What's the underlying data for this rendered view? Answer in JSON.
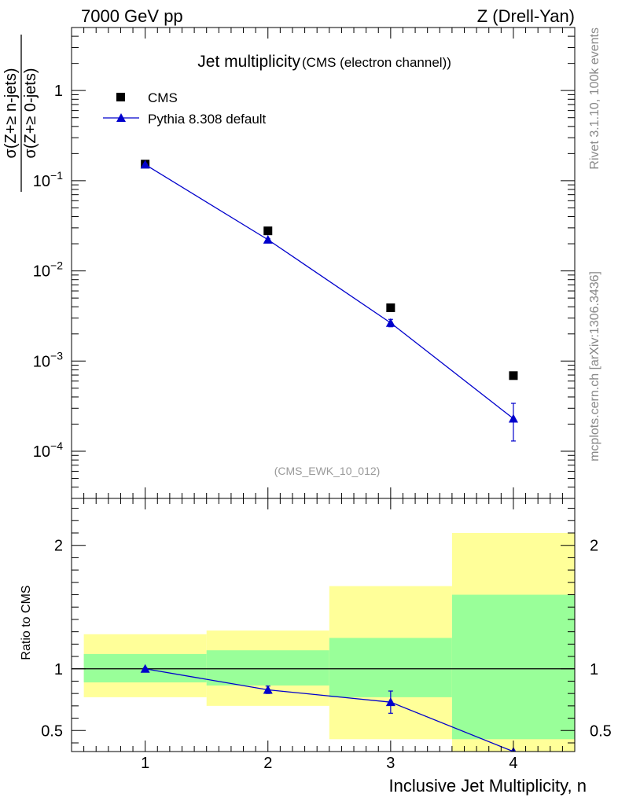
{
  "header": {
    "left": "7000 GeV pp",
    "right": "Z (Drell-Yan)"
  },
  "side_labels": {
    "top": "Rivet 3.1.10,  100k events",
    "bottom": "mcplots.cern.ch [arXiv:1306.3436]"
  },
  "chart_data": [
    {
      "type": "scatter",
      "title": "Jet multiplicity",
      "subtitle": "(CMS (electron channel))",
      "annotation": "(CMS_EWK_10_012)",
      "ylabel_numerator": "σ(Z+≥ n-jets)",
      "ylabel_denominator": "σ(Z+≥ 0-jets)",
      "yscale": "log",
      "xlim": [
        0.4,
        4.5
      ],
      "ylim": [
        3e-05,
        5
      ],
      "yticks": [
        {
          "value": 1,
          "base": "1",
          "exp": ""
        },
        {
          "value": 0.1,
          "base": "10",
          "exp": "−1"
        },
        {
          "value": 0.01,
          "base": "10",
          "exp": "−2"
        },
        {
          "value": 0.001,
          "base": "10",
          "exp": "−3"
        },
        {
          "value": 0.0001,
          "base": "10",
          "exp": "−4"
        }
      ],
      "legend": "top-left",
      "series": [
        {
          "name": "CMS",
          "marker": "square",
          "color": "#000000",
          "x": [
            1,
            2,
            3,
            4
          ],
          "y": [
            0.153,
            0.0278,
            0.0039,
            0.00069
          ]
        },
        {
          "name": "Pythia 8.308 default",
          "marker": "triangle",
          "color": "#0000cc",
          "x": [
            1,
            2,
            3,
            4
          ],
          "y": [
            0.151,
            0.0222,
            0.00265,
            0.00023
          ],
          "yerr_low": [
            0.148,
            0.0216,
            0.0024,
            0.00013
          ],
          "yerr_high": [
            0.154,
            0.0228,
            0.0029,
            0.00034
          ]
        }
      ]
    },
    {
      "type": "scatter",
      "ylabel": "Ratio to CMS",
      "xlabel": "Inclusive Jet Multiplicity, n",
      "xlim": [
        0.4,
        4.5
      ],
      "ylim": [
        0.33,
        2.38
      ],
      "xticks": [
        "1",
        "2",
        "3",
        "4"
      ],
      "yticks": [
        "0.5",
        "1",
        "2"
      ],
      "yticks_values": [
        0.5,
        1,
        2
      ],
      "bands": {
        "edges": [
          0.5,
          1.5,
          2.5,
          3.5,
          4.5
        ],
        "stat_color": "#99ff99",
        "total_color": "#ffff99",
        "stat_low": [
          0.89,
          0.865,
          0.77,
          0.43
        ],
        "stat_high": [
          1.12,
          1.15,
          1.25,
          1.6
        ],
        "total_low": [
          0.77,
          0.7,
          0.43,
          0.33
        ],
        "total_high": [
          1.28,
          1.31,
          1.67,
          2.1
        ]
      },
      "series": [
        {
          "name": "Pythia 8.308 default",
          "marker": "triangle",
          "color": "#0000cc",
          "x": [
            1,
            2,
            3,
            4
          ],
          "y": [
            1.0,
            0.83,
            0.73,
            0.33
          ],
          "yerr_low": [
            0.995,
            0.8,
            0.64,
            0.33
          ],
          "yerr_high": [
            1.005,
            0.86,
            0.82,
            0.33
          ]
        }
      ]
    }
  ]
}
